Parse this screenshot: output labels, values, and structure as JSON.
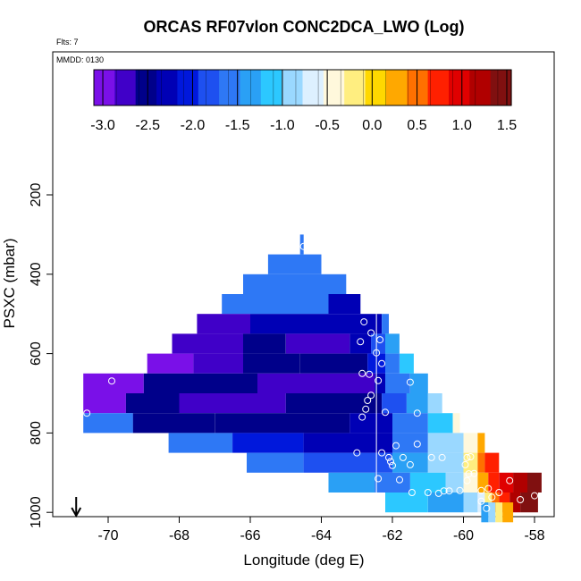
{
  "chart_data": {
    "type": "heatmap",
    "title": "ORCAS RF07vlon CONC2DCA_LWO (Log)",
    "flights_label": "Flts: 7",
    "date_label": "MMDD: 0130",
    "xlabel": "Longitude (deg E)",
    "ylabel": "PSXC (mbar)",
    "xlim": [
      -71.2,
      -57.2
    ],
    "ylim": [
      1020,
      90
    ],
    "x_ticks": [
      -70,
      -68,
      -66,
      -64,
      -62,
      -60,
      -58
    ],
    "x_tick_labels": [
      "-70",
      "-68",
      "-66",
      "-64",
      "-62",
      "-60",
      "-58"
    ],
    "y_ticks": [
      200,
      400,
      600,
      800,
      1000
    ],
    "y_tick_labels": [
      "200",
      "400",
      "600",
      "800",
      "1000"
    ],
    "colorbar": {
      "range": [
        -3.1,
        1.55
      ],
      "ticks": [
        -3.0,
        -2.5,
        -2.0,
        -1.5,
        -1.0,
        -0.5,
        0.0,
        0.5,
        1.0,
        1.5
      ],
      "tick_labels": [
        "-3.0",
        "-2.5",
        "-2.0",
        "-1.5",
        "-1.0",
        "-0.5",
        "0.0",
        "0.5",
        "1.0",
        "1.5"
      ]
    },
    "cell_width_deg": 0.25,
    "cell_height_mbar": 50,
    "colors": {
      "colorbar": [
        "#7a10e8",
        "#4000c8",
        "#00008a",
        "#0000b5",
        "#0018dc",
        "#1e50f0",
        "#2e78f5",
        "#2aa0f5",
        "#2cc8ff",
        "#9ad8ff",
        "#ddf0ff",
        "#fff8dc",
        "#ffee80",
        "#ffd800",
        "#ffa800",
        "#ff7000",
        "#ff2000",
        "#e00000",
        "#b00000",
        "#801010"
      ],
      "grid_line": "#000000",
      "marker": "#ffffff",
      "frame": "#000000"
    },
    "rows": [
      {
        "p": 325,
        "cells": [
          [
            -64.6,
            -64.5,
            -1.6
          ]
        ]
      },
      {
        "p": 375,
        "cells": [
          [
            -65.5,
            -64.0,
            -1.6
          ]
        ]
      },
      {
        "p": 425,
        "cells": [
          [
            -66.2,
            -63.3,
            -1.6
          ]
        ]
      },
      {
        "p": 475,
        "cells": [
          [
            -66.8,
            -63.8,
            -1.7
          ],
          [
            -63.8,
            -62.9,
            -2.3
          ]
        ]
      },
      {
        "p": 525,
        "cells": [
          [
            -67.5,
            -66.0,
            -2.7
          ],
          [
            -66.0,
            -64.2,
            -2.4
          ],
          [
            -64.2,
            -62.3,
            -2.2
          ],
          [
            -62.3,
            -62.1,
            -1.6
          ]
        ]
      },
      {
        "p": 575,
        "cells": [
          [
            -68.2,
            -66.2,
            -2.8
          ],
          [
            -66.2,
            -65.0,
            -2.6
          ],
          [
            -65.0,
            -63.2,
            -2.7
          ],
          [
            -63.2,
            -62.6,
            -2.2
          ],
          [
            -62.6,
            -62.2,
            -1.8
          ],
          [
            -62.2,
            -61.8,
            -1.3
          ]
        ]
      },
      {
        "p": 625,
        "cells": [
          [
            -68.9,
            -67.6,
            -2.9
          ],
          [
            -67.6,
            -66.2,
            -2.8
          ],
          [
            -66.2,
            -64.6,
            -2.5
          ],
          [
            -64.6,
            -62.7,
            -2.6
          ],
          [
            -62.7,
            -62.2,
            -2.1
          ],
          [
            -62.2,
            -61.8,
            -1.6
          ],
          [
            -61.8,
            -61.4,
            -1.2
          ]
        ]
      },
      {
        "p": 675,
        "cells": [
          [
            -70.7,
            -69.0,
            -3.0
          ],
          [
            -69.0,
            -65.8,
            -2.6
          ],
          [
            -65.8,
            -62.5,
            -2.8
          ],
          [
            -62.5,
            -62.2,
            -2.2
          ],
          [
            -62.2,
            -61.5,
            -1.7
          ],
          [
            -61.5,
            -61.0,
            -1.3
          ]
        ]
      },
      {
        "p": 725,
        "cells": [
          [
            -70.7,
            -69.5,
            -2.9
          ],
          [
            -69.5,
            -68.0,
            -2.6
          ],
          [
            -68.0,
            -65.0,
            -2.7
          ],
          [
            -65.0,
            -62.3,
            -2.5
          ],
          [
            -62.3,
            -61.6,
            -1.9
          ],
          [
            -61.6,
            -61.0,
            -1.4
          ],
          [
            -61.0,
            -60.6,
            -0.9
          ]
        ]
      },
      {
        "p": 775,
        "cells": [
          [
            -70.7,
            -69.3,
            -1.7
          ],
          [
            -69.3,
            -67.0,
            -2.5
          ],
          [
            -67.0,
            -63.2,
            -2.6
          ],
          [
            -63.2,
            -62.0,
            -2.3
          ],
          [
            -62.0,
            -61.0,
            -1.6
          ],
          [
            -61.0,
            -60.3,
            -1.1
          ],
          [
            -60.3,
            -60.1,
            -0.5
          ]
        ]
      },
      {
        "p": 825,
        "cells": [
          [
            -68.3,
            -66.5,
            -1.6
          ],
          [
            -66.5,
            -64.5,
            -2.0
          ],
          [
            -64.5,
            -62.0,
            -2.2
          ],
          [
            -62.0,
            -61.0,
            -1.5
          ],
          [
            -61.0,
            -60.0,
            -1.0
          ],
          [
            -60.0,
            -59.6,
            -0.4
          ],
          [
            -59.6,
            -59.4,
            0.2
          ]
        ]
      },
      {
        "p": 875,
        "cells": [
          [
            -66.1,
            -64.5,
            -1.5
          ],
          [
            -64.5,
            -62.0,
            -1.8
          ],
          [
            -62.0,
            -61.0,
            -1.4
          ],
          [
            -61.0,
            -60.0,
            -0.9
          ],
          [
            -60.0,
            -59.6,
            -0.3
          ],
          [
            -59.6,
            -59.4,
            0.4
          ],
          [
            -59.4,
            -59.0,
            0.8
          ]
        ]
      },
      {
        "p": 925,
        "cells": [
          [
            -63.8,
            -62.5,
            -1.4
          ],
          [
            -62.5,
            -61.5,
            -1.6
          ],
          [
            -61.5,
            -60.5,
            -1.2
          ],
          [
            -60.5,
            -60.0,
            -0.9
          ],
          [
            -60.0,
            -59.6,
            -0.4
          ],
          [
            -59.6,
            -59.3,
            0.2
          ],
          [
            -59.3,
            -59.0,
            0.7
          ],
          [
            -59.0,
            -58.6,
            1.0
          ],
          [
            -58.6,
            -58.2,
            1.3
          ],
          [
            -58.2,
            -57.8,
            1.5
          ]
        ]
      },
      {
        "p": 975,
        "cells": [
          [
            -62.2,
            -61.0,
            -1.1
          ],
          [
            -61.0,
            -60.0,
            -1.3
          ],
          [
            -60.0,
            -59.6,
            -0.9
          ],
          [
            -59.6,
            -59.4,
            -0.6
          ],
          [
            -59.4,
            -59.2,
            -0.3
          ],
          [
            -59.2,
            -59.0,
            0.4
          ],
          [
            -59.0,
            -58.7,
            0.8
          ],
          [
            -58.7,
            -58.4,
            1.2
          ],
          [
            -58.4,
            -58.2,
            1.4
          ],
          [
            -58.2,
            -57.9,
            1.6
          ]
        ]
      },
      {
        "p": 1000,
        "cells": [
          [
            -59.5,
            -59.3,
            -1.4
          ],
          [
            -59.3,
            -59.1,
            -0.8
          ],
          [
            -59.1,
            -58.9,
            -0.3
          ],
          [
            -58.9,
            -58.6,
            0.3
          ]
        ]
      }
    ],
    "vertical_line_lon": -62.45,
    "markers": [
      [
        -64.5,
        330
      ],
      [
        -63.1,
        436
      ],
      [
        -62.7,
        490
      ],
      [
        -62.8,
        520
      ],
      [
        -62.6,
        548
      ],
      [
        -62.9,
        570
      ],
      [
        -62.35,
        565
      ],
      [
        -62.45,
        598
      ],
      [
        -62.3,
        625
      ],
      [
        -62.85,
        650
      ],
      [
        -62.65,
        652
      ],
      [
        -62.4,
        668
      ],
      [
        -61.5,
        672
      ],
      [
        -62.6,
        705
      ],
      [
        -62.7,
        718
      ],
      [
        -62.75,
        740
      ],
      [
        -62.2,
        748
      ],
      [
        -61.3,
        750
      ],
      [
        -62.85,
        760
      ],
      [
        -69.9,
        669
      ],
      [
        -70.6,
        750
      ],
      [
        -63.0,
        850
      ],
      [
        -62.3,
        850
      ],
      [
        -61.9,
        832
      ],
      [
        -61.3,
        828
      ],
      [
        -60.9,
        862
      ],
      [
        -60.6,
        862
      ],
      [
        -59.9,
        862
      ],
      [
        -59.95,
        880
      ],
      [
        -59.8,
        860
      ],
      [
        -62.1,
        862
      ],
      [
        -62.05,
        872
      ],
      [
        -62.0,
        882
      ],
      [
        -61.7,
        862
      ],
      [
        -61.5,
        880
      ],
      [
        -59.7,
        902
      ],
      [
        -59.85,
        903
      ],
      [
        -59.9,
        920
      ],
      [
        -62.4,
        915
      ],
      [
        -61.8,
        918
      ],
      [
        -61.45,
        950
      ],
      [
        -61.0,
        950
      ],
      [
        -60.55,
        946
      ],
      [
        -60.4,
        946
      ],
      [
        -60.1,
        945
      ],
      [
        -59.5,
        945
      ],
      [
        -59.3,
        940
      ],
      [
        -59.2,
        962
      ],
      [
        -59.5,
        972
      ],
      [
        -58.4,
        968
      ],
      [
        -58.0,
        958
      ],
      [
        -58.7,
        920
      ],
      [
        -59.35,
        990
      ],
      [
        -59.0,
        950
      ],
      [
        -60.7,
        952
      ]
    ],
    "arrow_lon": -70.9
  }
}
